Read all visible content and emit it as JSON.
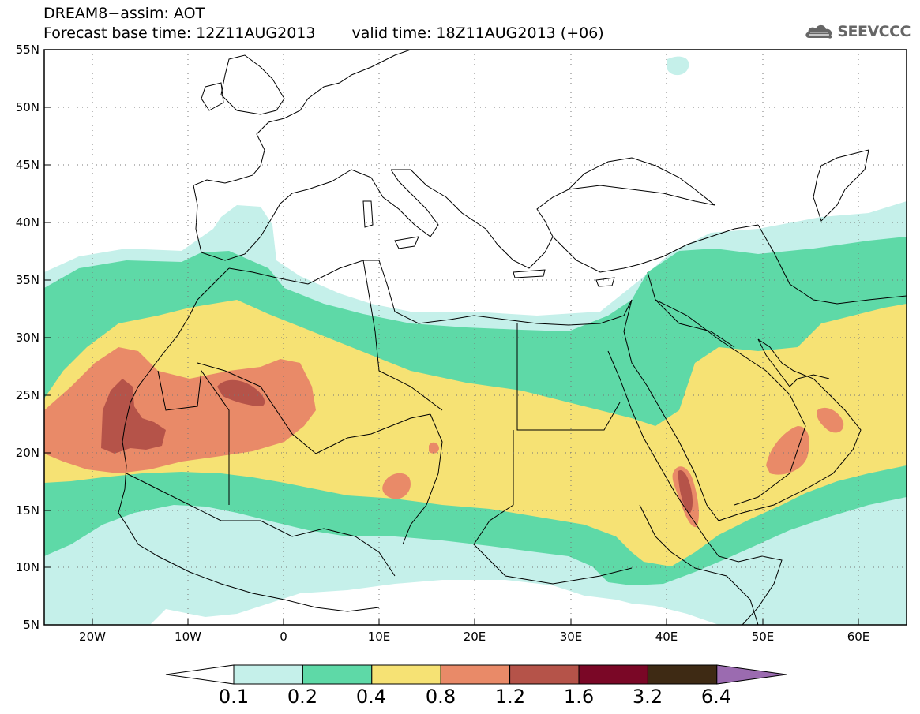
{
  "header": {
    "title_line1": "DREAM8−assim: AOT",
    "base_time": "Forecast base time: 12Z11AUG2013",
    "valid_time": "valid time: 18Z11AUG2013 (+06)"
  },
  "logo": {
    "text": "SEEVCCC",
    "icon": "cloud-icon",
    "color": "#666666"
  },
  "map": {
    "projection": "lat-lon",
    "lon_range": [
      -25,
      65
    ],
    "lat_range": [
      5,
      55
    ],
    "lat_ticks": [
      "5N",
      "10N",
      "15N",
      "20N",
      "25N",
      "30N",
      "35N",
      "40N",
      "45N",
      "50N",
      "55N"
    ],
    "lon_ticks": [
      "20W",
      "10W",
      "0",
      "10E",
      "20E",
      "30E",
      "40E",
      "50E",
      "60E"
    ],
    "grid": "dotted"
  },
  "colorbar": {
    "labels": [
      "0.1",
      "0.2",
      "0.4",
      "0.8",
      "1.2",
      "1.6",
      "3.2",
      "6.4"
    ],
    "colors": [
      "#c5f0ea",
      "#5ed9a7",
      "#f6e274",
      "#e98a68",
      "#b55349",
      "#7a0726",
      "#3e2a14",
      "#9b6bb0"
    ],
    "extend_low_color": "#ffffff",
    "extend_high_color": "#9b6bb0"
  }
}
